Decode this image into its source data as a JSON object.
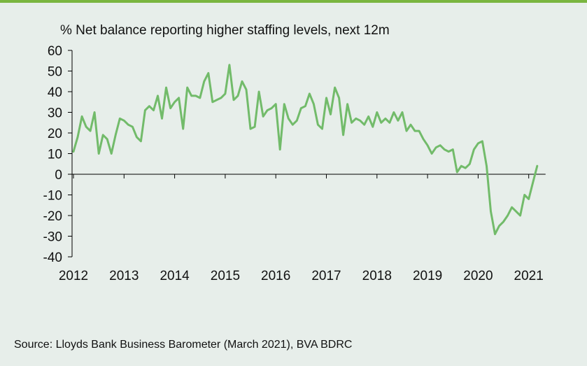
{
  "source_note": "Source: Lloyds Bank Business Barometer (March 2021), BVA BDRC",
  "colors": {
    "background": "#e7eeea",
    "accent": "#7ab640",
    "line": "#72bb6a",
    "axis": "#000000"
  },
  "chart_data": {
    "type": "line",
    "title": "% Net balance reporting higher staffing levels, next 12m",
    "xlabel": "",
    "ylabel": "",
    "ylim": [
      -40,
      60
    ],
    "yticks": [
      "60",
      "50",
      "40",
      "30",
      "20",
      "10",
      "0",
      "-10",
      "-20",
      "-30",
      "-40"
    ],
    "xlim": [
      2012.0,
      2021.25
    ],
    "xticks": [
      "2012",
      "2013",
      "2014",
      "2015",
      "2016",
      "2017",
      "2018",
      "2019",
      "2020",
      "2021"
    ],
    "grid": false,
    "series": [
      {
        "x": [
          2012.0,
          2012.083,
          2012.167,
          2012.25,
          2012.333,
          2012.417,
          2012.5,
          2012.583,
          2012.667,
          2012.75,
          2012.833,
          2012.917,
          2013.0,
          2013.083,
          2013.167,
          2013.25,
          2013.333,
          2013.417,
          2013.5,
          2013.583,
          2013.667,
          2013.75,
          2013.833,
          2013.917,
          2014.0,
          2014.083,
          2014.167,
          2014.25,
          2014.333,
          2014.417,
          2014.5,
          2014.583,
          2014.667,
          2014.75,
          2014.833,
          2014.917,
          2015.0,
          2015.083,
          2015.167,
          2015.25,
          2015.333,
          2015.417,
          2015.5,
          2015.583,
          2015.667,
          2015.75,
          2015.833,
          2015.917,
          2016.0,
          2016.083,
          2016.167,
          2016.25,
          2016.333,
          2016.417,
          2016.5,
          2016.583,
          2016.667,
          2016.75,
          2016.833,
          2016.917,
          2017.0,
          2017.083,
          2017.167,
          2017.25,
          2017.333,
          2017.417,
          2017.5,
          2017.583,
          2017.667,
          2017.75,
          2017.833,
          2017.917,
          2018.0,
          2018.083,
          2018.167,
          2018.25,
          2018.333,
          2018.417,
          2018.5,
          2018.583,
          2018.667,
          2018.75,
          2018.833,
          2018.917,
          2019.0,
          2019.083,
          2019.167,
          2019.25,
          2019.333,
          2019.417,
          2019.5,
          2019.583,
          2019.667,
          2019.75,
          2019.833,
          2019.917,
          2020.0,
          2020.083,
          2020.167,
          2020.25,
          2020.333,
          2020.417,
          2020.5,
          2020.583,
          2020.667,
          2020.75,
          2020.833,
          2020.917,
          2021.0,
          2021.083,
          2021.167
        ],
        "y": [
          11,
          18,
          28,
          23,
          21,
          30,
          10,
          19,
          17,
          10,
          19,
          27,
          26,
          24,
          23,
          18,
          16,
          31,
          33,
          31,
          38,
          27,
          42,
          32,
          35,
          37,
          22,
          42,
          38,
          38,
          37,
          45,
          49,
          35,
          36,
          37,
          39,
          53,
          36,
          38,
          45,
          41,
          22,
          23,
          40,
          28,
          31,
          32,
          34,
          12,
          34,
          27,
          24,
          26,
          32,
          33,
          39,
          34,
          24,
          22,
          37,
          29,
          42,
          37,
          19,
          34,
          25,
          27,
          26,
          24,
          28,
          23,
          30,
          25,
          27,
          25,
          30,
          26,
          30,
          21,
          24,
          21,
          21,
          17,
          14,
          10,
          13,
          14,
          12,
          11,
          12,
          1,
          4,
          3,
          5,
          12,
          15,
          16,
          4,
          -18,
          -29,
          -25,
          -23,
          -20,
          -16,
          -18,
          -20,
          -10,
          -12,
          -4,
          4
        ]
      }
    ]
  }
}
